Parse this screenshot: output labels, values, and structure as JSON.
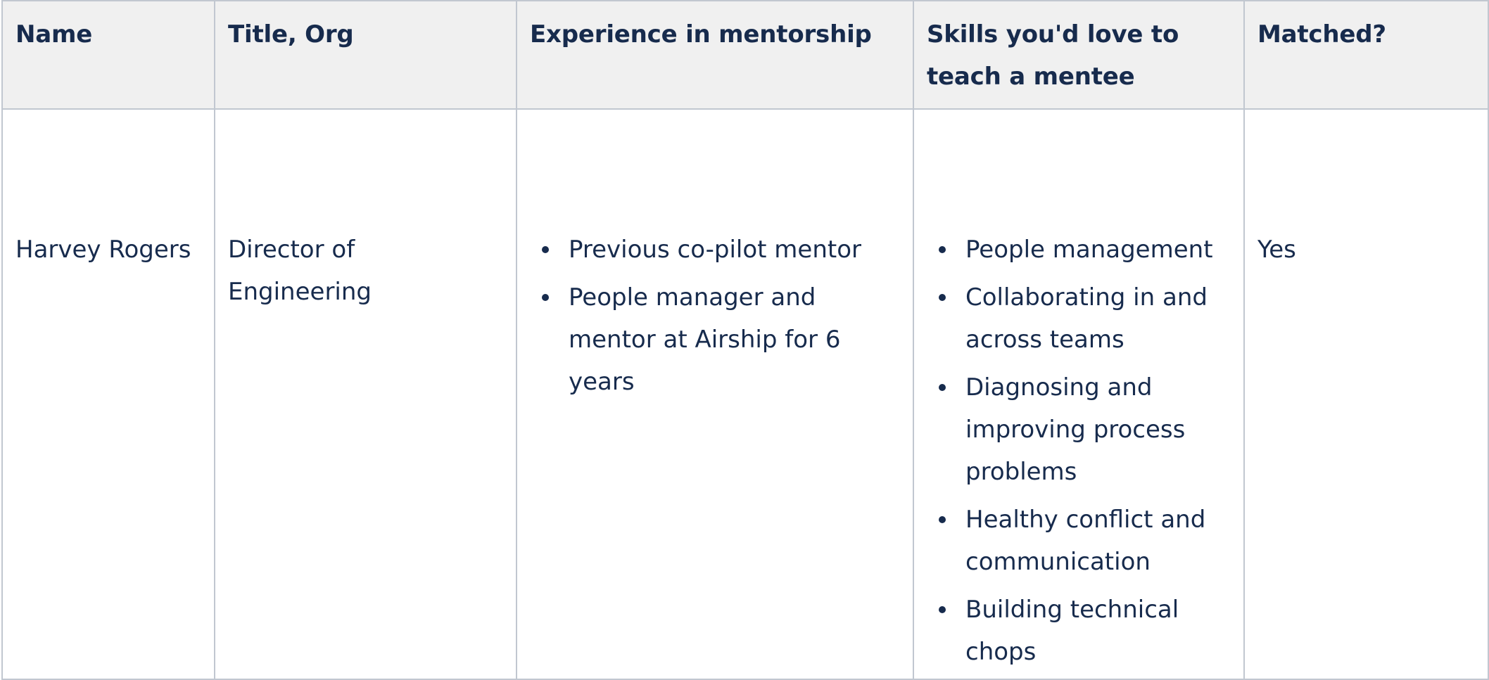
{
  "table": {
    "headers": [
      "Name",
      "Title, Org",
      "Experience in mentorship",
      "Skills you'd love to teach a mentee",
      "Matched?"
    ],
    "rows": [
      {
        "name": "Harvey Rogers",
        "title_org": "Director of Engineering",
        "experience": [
          "Previous co-pilot mentor",
          "People manager and mentor at Airship for 6 years"
        ],
        "skills": [
          "People management",
          "Collaborating in and across teams",
          "Diagnosing and improving process problems",
          "Healthy conflict and communication",
          "Building technical chops"
        ],
        "matched": "Yes"
      }
    ]
  },
  "colors": {
    "text": "#172b4d",
    "header_bg": "#f0f0f0",
    "border": "#c1c7d0"
  }
}
